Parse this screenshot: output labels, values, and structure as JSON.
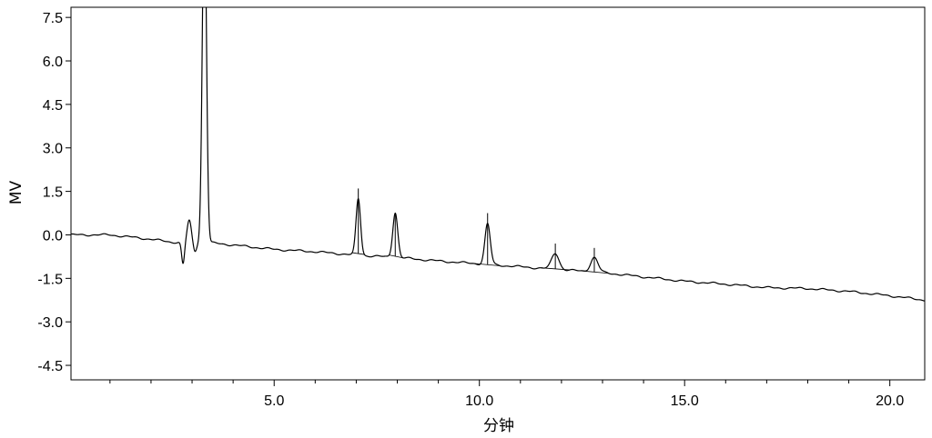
{
  "chart_data": {
    "type": "line",
    "title": "",
    "xlabel": "分钟",
    "ylabel": "MV",
    "xlim": [
      0.05,
      20.85
    ],
    "ylim": [
      -5.0,
      7.85
    ],
    "x_ticks_major": [
      5,
      10,
      15,
      20
    ],
    "x_tick_labels": [
      "5.0",
      "10.0",
      "15.0",
      "20.0"
    ],
    "x_ticks_minor": [
      1,
      2,
      3,
      4,
      6,
      7,
      8,
      9,
      11,
      12,
      13,
      14,
      16,
      17,
      18,
      19
    ],
    "y_ticks": [
      7.5,
      6.0,
      4.5,
      3.0,
      1.5,
      0.0,
      -1.5,
      -3.0,
      -4.5
    ],
    "y_tick_labels": [
      "7.5",
      "6.0",
      "4.5",
      "3.0",
      "1.5",
      "0.0",
      "-1.5",
      "-3.0",
      "-4.5"
    ],
    "grid": false,
    "series": [
      {
        "baseline_points": [
          [
            0.05,
            0.0
          ],
          [
            1.0,
            0.0
          ],
          [
            2.0,
            -0.15
          ],
          [
            2.5,
            -0.25
          ],
          [
            3.5,
            -0.28
          ],
          [
            4.0,
            -0.35
          ],
          [
            5.0,
            -0.5
          ],
          [
            6.0,
            -0.58
          ],
          [
            7.0,
            -0.7
          ],
          [
            8.0,
            -0.78
          ],
          [
            9.0,
            -0.9
          ],
          [
            10.0,
            -1.0
          ],
          [
            11.0,
            -1.1
          ],
          [
            12.0,
            -1.2
          ],
          [
            13.0,
            -1.3
          ],
          [
            14.0,
            -1.45
          ],
          [
            15.0,
            -1.6
          ],
          [
            16.0,
            -1.7
          ],
          [
            17.0,
            -1.82
          ],
          [
            18.0,
            -1.85
          ],
          [
            19.0,
            -1.95
          ],
          [
            20.0,
            -2.1
          ],
          [
            20.85,
            -2.25
          ]
        ],
        "peaks": [
          {
            "rt": 2.78,
            "height": -0.75,
            "width": 0.035
          },
          {
            "rt": 2.93,
            "height": 0.75,
            "width": 0.05
          },
          {
            "rt": 3.07,
            "height": -0.3,
            "width": 0.04
          },
          {
            "rt": 3.3,
            "height": 12.0,
            "width": 0.05
          },
          {
            "rt": 7.05,
            "height": 1.95,
            "width": 0.055
          },
          {
            "rt": 7.95,
            "height": 1.55,
            "width": 0.06
          },
          {
            "rt": 10.2,
            "height": 1.4,
            "width": 0.065
          },
          {
            "rt": 11.85,
            "height": 0.55,
            "width": 0.09
          },
          {
            "rt": 12.8,
            "height": 0.5,
            "width": 0.09
          }
        ]
      }
    ],
    "integrated_peaks": [
      {
        "rt": 7.05,
        "start": 6.9,
        "end": 7.2,
        "marker_top": 1.6
      },
      {
        "rt": 7.95,
        "start": 7.8,
        "end": 8.15,
        "marker_top": 0.7
      },
      {
        "rt": 10.2,
        "start": 9.85,
        "end": 10.5,
        "marker_top": 0.75
      },
      {
        "rt": 11.85,
        "start": 11.5,
        "end": 12.2,
        "marker_top": -0.3
      },
      {
        "rt": 12.8,
        "start": 12.45,
        "end": 13.15,
        "marker_top": -0.45
      }
    ]
  }
}
